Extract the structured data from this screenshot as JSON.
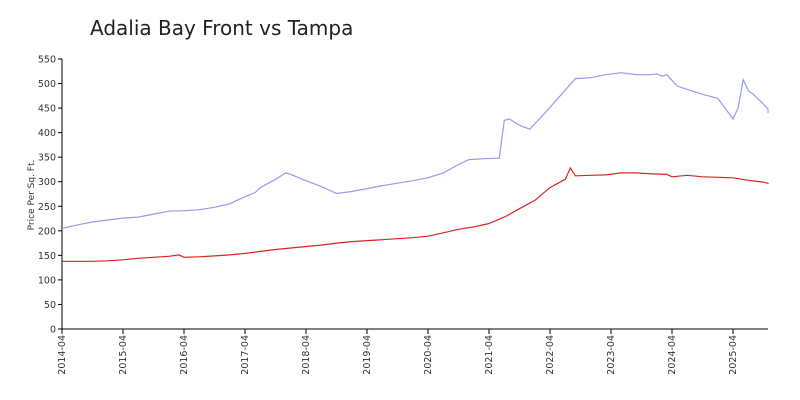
{
  "chart_data": {
    "type": "line",
    "title": "Adalia Bay Front vs Tampa",
    "ylabel": "Price Per Sq. Ft.",
    "xlabel": "",
    "ylim": [
      0,
      550
    ],
    "yticks": [
      0,
      50,
      100,
      150,
      200,
      250,
      300,
      350,
      400,
      450,
      500,
      550
    ],
    "xlim": [
      "2014-04",
      "2025-11"
    ],
    "xticks": [
      "2014-04",
      "2015-04",
      "2016-04",
      "2017-04",
      "2018-04",
      "2019-04",
      "2020-04",
      "2021-04",
      "2022-04",
      "2023-04",
      "2024-04",
      "2025-04"
    ],
    "grid": false,
    "series": [
      {
        "color": "#9999ee",
        "points": [
          [
            "2014-04",
            205
          ],
          [
            "2014-07",
            212
          ],
          [
            "2014-10",
            218
          ],
          [
            "2015-01",
            222
          ],
          [
            "2015-04",
            226
          ],
          [
            "2015-07",
            228
          ],
          [
            "2015-10",
            234
          ],
          [
            "2016-01",
            240
          ],
          [
            "2016-04",
            241
          ],
          [
            "2016-07",
            243
          ],
          [
            "2016-10",
            248
          ],
          [
            "2017-01",
            255
          ],
          [
            "2017-03",
            265
          ],
          [
            "2017-06",
            278
          ],
          [
            "2017-07",
            288
          ],
          [
            "2017-10",
            305
          ],
          [
            "2017-12",
            318
          ],
          [
            "2018-01",
            315
          ],
          [
            "2018-04",
            302
          ],
          [
            "2018-07",
            290
          ],
          [
            "2018-10",
            276
          ],
          [
            "2019-01",
            280
          ],
          [
            "2019-04",
            286
          ],
          [
            "2019-07",
            292
          ],
          [
            "2019-10",
            297
          ],
          [
            "2020-01",
            302
          ],
          [
            "2020-04",
            308
          ],
          [
            "2020-07",
            318
          ],
          [
            "2020-10",
            335
          ],
          [
            "2020-12",
            345
          ],
          [
            "2021-03",
            347
          ],
          [
            "2021-06",
            348
          ],
          [
            "2021-07",
            425
          ],
          [
            "2021-08",
            428
          ],
          [
            "2021-10",
            415
          ],
          [
            "2021-12",
            407
          ],
          [
            "2022-03",
            440
          ],
          [
            "2022-06",
            475
          ],
          [
            "2022-09",
            510
          ],
          [
            "2022-12",
            512
          ],
          [
            "2023-03",
            518
          ],
          [
            "2023-06",
            522
          ],
          [
            "2023-09",
            518
          ],
          [
            "2023-12",
            518
          ],
          [
            "2024-01",
            520
          ],
          [
            "2024-02",
            515
          ],
          [
            "2024-03",
            518
          ],
          [
            "2024-05",
            495
          ],
          [
            "2024-07",
            488
          ],
          [
            "2024-10",
            478
          ],
          [
            "2025-01",
            470
          ],
          [
            "2025-04",
            428
          ],
          [
            "2025-05",
            450
          ],
          [
            "2025-06",
            508
          ],
          [
            "2025-07",
            485
          ],
          [
            "2025-08",
            478
          ],
          [
            "2025-10",
            458
          ],
          [
            "2026-01",
            448
          ],
          [
            "2026-03",
            440
          ]
        ]
      },
      {
        "color": "#dd2222",
        "points": [
          [
            "2014-04",
            138
          ],
          [
            "2014-07",
            138
          ],
          [
            "2014-10",
            138
          ],
          [
            "2015-01",
            139
          ],
          [
            "2015-04",
            141
          ],
          [
            "2015-07",
            144
          ],
          [
            "2015-10",
            146
          ],
          [
            "2016-01",
            148
          ],
          [
            "2016-03",
            151
          ],
          [
            "2016-04",
            146
          ],
          [
            "2016-07",
            147
          ],
          [
            "2016-10",
            149
          ],
          [
            "2017-01",
            151
          ],
          [
            "2017-04",
            154
          ],
          [
            "2017-07",
            158
          ],
          [
            "2017-10",
            162
          ],
          [
            "2018-01",
            165
          ],
          [
            "2018-04",
            168
          ],
          [
            "2018-07",
            171
          ],
          [
            "2018-10",
            175
          ],
          [
            "2019-01",
            178
          ],
          [
            "2019-04",
            180
          ],
          [
            "2019-07",
            182
          ],
          [
            "2019-10",
            184
          ],
          [
            "2020-01",
            186
          ],
          [
            "2020-04",
            189
          ],
          [
            "2020-07",
            196
          ],
          [
            "2020-10",
            203
          ],
          [
            "2021-01",
            208
          ],
          [
            "2021-04",
            215
          ],
          [
            "2021-07",
            228
          ],
          [
            "2021-10",
            245
          ],
          [
            "2022-01",
            262
          ],
          [
            "2022-04",
            288
          ],
          [
            "2022-07",
            305
          ],
          [
            "2022-08",
            328
          ],
          [
            "2022-09",
            312
          ],
          [
            "2022-12",
            313
          ],
          [
            "2023-03",
            314
          ],
          [
            "2023-06",
            318
          ],
          [
            "2023-09",
            318
          ],
          [
            "2023-12",
            316
          ],
          [
            "2024-03",
            315
          ],
          [
            "2024-04",
            310
          ],
          [
            "2024-07",
            313
          ],
          [
            "2024-10",
            310
          ],
          [
            "2025-01",
            309
          ],
          [
            "2025-04",
            308
          ],
          [
            "2025-07",
            303
          ],
          [
            "2025-10",
            299
          ],
          [
            "2026-01",
            297
          ],
          [
            "2026-03",
            295
          ]
        ]
      }
    ]
  }
}
